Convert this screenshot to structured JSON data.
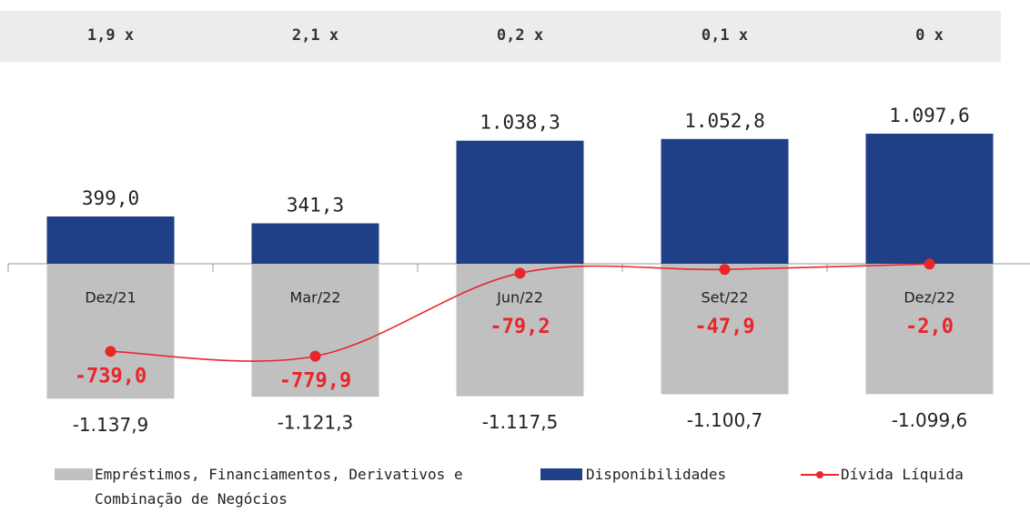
{
  "chart_data": {
    "type": "bar",
    "categories": [
      "Dez/21",
      "Mar/22",
      "Jun/22",
      "Set/22",
      "Dez/22"
    ],
    "annotations": [
      "1,9 x",
      "2,1 x",
      "0,2 x",
      "0,1 x",
      "0 x"
    ],
    "ylim": [
      -1200,
      1200
    ],
    "series": [
      {
        "name": "Empréstimos, Financiamentos, Derivativos e Combinação de Negócios",
        "color": "#c0c0c0",
        "values": [
          -1137.9,
          -1121.3,
          -1117.5,
          -1100.7,
          -1099.6
        ],
        "value_labels": [
          "-1.137,9",
          "-1.121,3",
          "-1.117,5",
          "-1.100,7",
          "-1.099,6"
        ]
      },
      {
        "name": "Disponibilidades",
        "color": "#1f3f86",
        "values": [
          399.0,
          341.3,
          1038.3,
          1052.8,
          1097.6
        ],
        "value_labels": [
          "399,0",
          "341,3",
          "1.038,3",
          "1.052,8",
          "1.097,6"
        ]
      },
      {
        "name": "Dívida Líquida",
        "type": "line",
        "color": "#e8262c",
        "values": [
          -739.0,
          -779.9,
          -79.2,
          -47.9,
          -2.0
        ],
        "value_labels": [
          "-739,0",
          "-779,9",
          "-79,2",
          "-47,9",
          "-2,0"
        ]
      }
    ]
  }
}
